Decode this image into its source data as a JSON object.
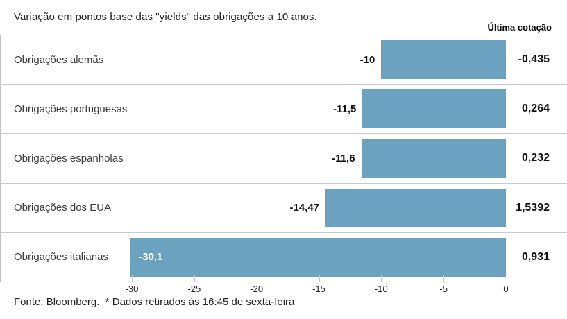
{
  "title": "Variação em pontos base das \"yields\" das obrigações a 10 anos.",
  "quote_header": "Última cotação",
  "footer": "Fonte: Bloomberg.  * Dados retirados às 16:45 de sexta-feira",
  "colors": {
    "bar": "#6aa2c0",
    "separator": "#c9c9c9",
    "axis": "#8c8c8c",
    "zero_line": "#c2c2c2",
    "inside_label": "#ffffff"
  },
  "chart_data": {
    "type": "bar",
    "orientation": "horizontal",
    "title": "Variação em pontos base das \"yields\" das obrigações a 10 anos.",
    "value_column_header": "Última cotação",
    "xlim": [
      -30,
      0
    ],
    "x_tick_values": [
      -30,
      -25,
      -20,
      -15,
      -10,
      -5,
      0
    ],
    "x_tick_labels": [
      "-30",
      "-25",
      "-20",
      "-15",
      "-10",
      "-5",
      "0"
    ],
    "grid": false,
    "rows": [
      {
        "label": "Obrigações alemãs",
        "change_bp": -10,
        "change_label": "-10",
        "last_quote": "-0,435",
        "value_inside_bar": false
      },
      {
        "label": "Obrigações portuguesas",
        "change_bp": -11.5,
        "change_label": "-11,5",
        "last_quote": "0,264",
        "value_inside_bar": false
      },
      {
        "label": "Obrigações espanholas",
        "change_bp": -11.6,
        "change_label": "-11,6",
        "last_quote": "0,232",
        "value_inside_bar": false
      },
      {
        "label": "Obrigações dos EUA",
        "change_bp": -14.47,
        "change_label": "-14,47",
        "last_quote": "1,5392",
        "value_inside_bar": false
      },
      {
        "label": "Obrigações italianas",
        "change_bp": -30.1,
        "change_label": "-30,1",
        "last_quote": "0,931",
        "value_inside_bar": true
      }
    ]
  }
}
